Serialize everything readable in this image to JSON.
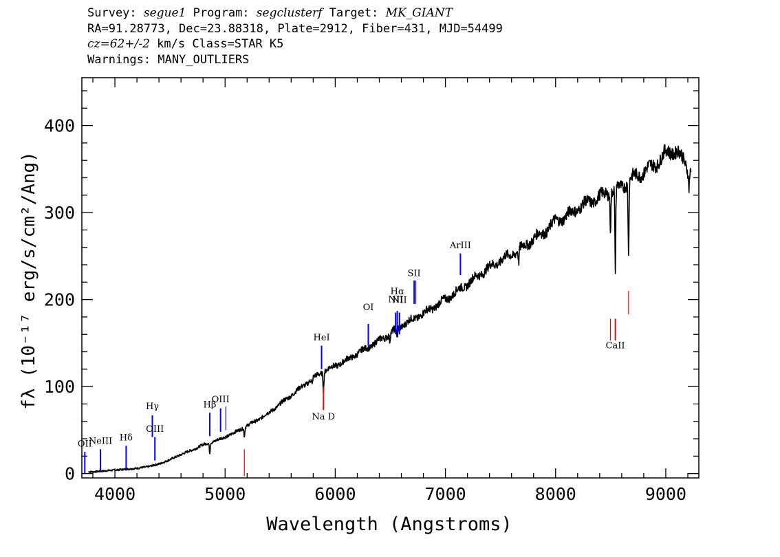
{
  "header": {
    "survey_label": "Survey:",
    "survey": "segue1",
    "program_label": "Program:",
    "program": "segclusterf",
    "target_label": "Target:",
    "target": "MK_GIANT",
    "line2": "RA=91.28773, Dec=23.88318, Plate=2912, Fiber=431, MJD=54499",
    "cz": "cz=62+/-2",
    "cz_rest": "km/s Class=STAR K5",
    "warnings": "Warnings: MANY_OUTLIERS"
  },
  "chart_data": {
    "type": "line",
    "xlabel": "Wavelength (Angstroms)",
    "ylabel": "fλ (10⁻¹⁷ erg/s/cm²/Ang)",
    "xlim": [
      3700,
      9300
    ],
    "ylim": [
      -5,
      455
    ],
    "x_ticks": [
      4000,
      5000,
      6000,
      7000,
      8000,
      9000
    ],
    "y_ticks": [
      0,
      100,
      200,
      300,
      400
    ],
    "x_tick_labels": [
      "4000",
      "5000",
      "6000",
      "7000",
      "8000",
      "9000"
    ],
    "y_tick_labels": [
      "0",
      "100",
      "200",
      "300",
      "400"
    ],
    "series": [
      {
        "color": "#000000",
        "x": [
          3800,
          3900,
          4000,
          4100,
          4200,
          4300,
          4400,
          4500,
          4600,
          4700,
          4800,
          4900,
          5000,
          5100,
          5200,
          5300,
          5400,
          5500,
          5600,
          5700,
          5800,
          5900,
          6000,
          6100,
          6200,
          6300,
          6400,
          6500,
          6600,
          6700,
          6800,
          6900,
          7000,
          7100,
          7200,
          7300,
          7400,
          7500,
          7600,
          7700,
          7800,
          7900,
          8000,
          8100,
          8200,
          8300,
          8400,
          8500,
          8600,
          8700,
          8800,
          8900,
          9000,
          9100,
          9200
        ],
        "y": [
          2,
          3,
          4,
          5,
          6,
          8,
          11,
          16,
          22,
          27,
          33,
          37,
          42,
          48,
          55,
          62,
          70,
          80,
          90,
          100,
          110,
          118,
          124,
          130,
          138,
          145,
          153,
          161,
          170,
          177,
          184,
          192,
          200,
          209,
          218,
          228,
          237,
          245,
          252,
          260,
          270,
          278,
          290,
          296,
          305,
          312,
          318,
          325,
          330,
          340,
          347,
          355,
          368,
          372,
          350
        ]
      }
    ],
    "absorption_dips": [
      {
        "x": 4861,
        "depth": 12
      },
      {
        "x": 5175,
        "depth": 10
      },
      {
        "x": 5790,
        "depth": 8
      },
      {
        "x": 5893,
        "depth": 22
      },
      {
        "x": 6495,
        "depth": 8
      },
      {
        "x": 6563,
        "depth": 14
      },
      {
        "x": 7665,
        "depth": 15
      },
      {
        "x": 8498,
        "depth": 40
      },
      {
        "x": 8542,
        "depth": 95
      },
      {
        "x": 8662,
        "depth": 80
      },
      {
        "x": 9210,
        "depth": 18
      }
    ],
    "line_markers": [
      {
        "label": "OII",
        "x": 3727,
        "y1": 0,
        "y2": 25,
        "color": "#0000ff",
        "label_y": 31
      },
      {
        "label": "NeIII",
        "x": 3869,
        "y1": 3,
        "y2": 28,
        "color": "#0000ff",
        "label_y": 34
      },
      {
        "label": "Hδ",
        "x": 4102,
        "y1": 5,
        "y2": 32,
        "color": "#0000ff",
        "label_y": 38
      },
      {
        "label": "Hγ",
        "x": 4340,
        "y1": 42,
        "y2": 67,
        "color": "#0000ff",
        "label_y": 74
      },
      {
        "label": "OIII",
        "x": 4363,
        "y1": 15,
        "y2": 42,
        "color": "#0000ff",
        "label_y": 48
      },
      {
        "label": "Hβ",
        "x": 4861,
        "y1": 43,
        "y2": 70,
        "color": "#0000ff",
        "label_y": 76
      },
      {
        "label": "OIII",
        "x": 4959,
        "y1": 48,
        "y2": 75,
        "color": "#0000ff",
        "label_y": 82
      },
      {
        "label": "",
        "x": 5007,
        "y1": 50,
        "y2": 77,
        "color": "#0000ff"
      },
      {
        "label": "HeI",
        "x": 5876,
        "y1": 120,
        "y2": 147,
        "color": "#0000ff",
        "label_y": 153
      },
      {
        "label": "OI",
        "x": 6300,
        "y1": 147,
        "y2": 172,
        "color": "#0000ff",
        "label_y": 188
      },
      {
        "label": "NII",
        "x": 6548,
        "y1": 160,
        "y2": 185,
        "color": "#0000ff",
        "label_y": 197
      },
      {
        "label": "Hα",
        "x": 6563,
        "y1": 162,
        "y2": 187,
        "color": "#0000ff",
        "label_y": 206
      },
      {
        "label": "NII",
        "x": 6583,
        "y1": 160,
        "y2": 185,
        "color": "#0000ff",
        "label_y": 196
      },
      {
        "label": "SII",
        "x": 6716,
        "y1": 195,
        "y2": 222,
        "color": "#0000ff",
        "label_y": 227
      },
      {
        "label": "",
        "x": 6731,
        "y1": 195,
        "y2": 222,
        "color": "#0000ff"
      },
      {
        "label": "ArIII",
        "x": 7136,
        "y1": 228,
        "y2": 253,
        "color": "#0000ff",
        "label_y": 259
      },
      {
        "label": "",
        "x": 5175,
        "y1": -3,
        "y2": 28,
        "color": "#ff0000"
      },
      {
        "label": "Na D",
        "x": 5893,
        "y1": 73,
        "y2": 100,
        "color": "#ff0000",
        "label_y": 62
      },
      {
        "label": "CaII",
        "x": 8542,
        "y1": 153,
        "y2": 178,
        "color": "#ff0000",
        "label_y": 144
      },
      {
        "label": "",
        "x": 8498,
        "y1": 153,
        "y2": 178,
        "color": "#ff0000"
      },
      {
        "label": "",
        "x": 8662,
        "y1": 183,
        "y2": 210,
        "color": "#ff0000"
      }
    ]
  }
}
